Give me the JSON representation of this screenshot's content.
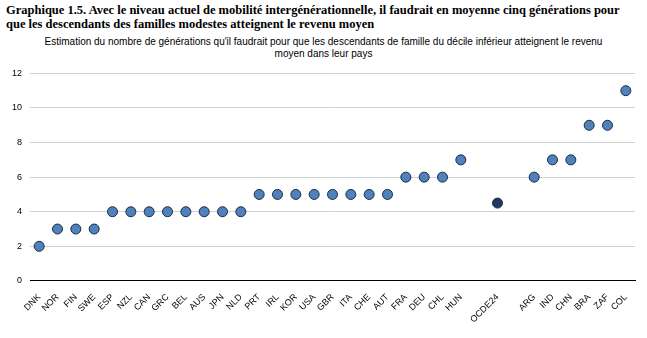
{
  "chart_data": {
    "type": "scatter",
    "title": "Graphique 1.5. Avec le niveau actuel de mobilité intergénérationnelle, il faudrait en moyenne cinq générations pour que les descendants des familles modestes atteignent le revenu moyen",
    "subtitle": "Estimation du nombre de générations qu'il faudrait pour que les descendants de famille du décile inférieur atteignent le revenu moyen dans leur pays",
    "categories": [
      "DNK",
      "NOR",
      "FIN",
      "SWE",
      "ESP",
      "NZL",
      "CAN",
      "GRC",
      "BEL",
      "AUS",
      "JPN",
      "NLD",
      "PRT",
      "IRL",
      "KOR",
      "USA",
      "GBR",
      "ITA",
      "CHE",
      "AUT",
      "FRA",
      "DEU",
      "CHL",
      "HUN",
      null,
      "OCDE24",
      null,
      "ARG",
      "IND",
      "CHN",
      "BRA",
      "ZAF",
      "COL"
    ],
    "values": [
      2,
      3,
      3,
      3,
      4,
      4,
      4,
      4,
      4,
      4,
      4,
      4,
      5,
      5,
      5,
      5,
      5,
      5,
      5,
      5,
      6,
      6,
      6,
      7,
      null,
      4.5,
      null,
      6,
      7,
      7,
      9,
      9,
      11
    ],
    "colors": [
      "#4f81bd",
      "#4f81bd",
      "#4f81bd",
      "#4f81bd",
      "#4f81bd",
      "#4f81bd",
      "#4f81bd",
      "#4f81bd",
      "#4f81bd",
      "#4f81bd",
      "#4f81bd",
      "#4f81bd",
      "#4f81bd",
      "#4f81bd",
      "#4f81bd",
      "#4f81bd",
      "#4f81bd",
      "#4f81bd",
      "#4f81bd",
      "#4f81bd",
      "#4f81bd",
      "#4f81bd",
      "#4f81bd",
      "#4f81bd",
      null,
      "#1f3864",
      null,
      "#4f81bd",
      "#4f81bd",
      "#4f81bd",
      "#4f81bd",
      "#4f81bd",
      "#4f81bd"
    ],
    "marker": "circle",
    "ylim": [
      0,
      12
    ],
    "yticks": [
      0,
      2,
      4,
      6,
      8,
      10,
      12
    ],
    "grid": true
  }
}
